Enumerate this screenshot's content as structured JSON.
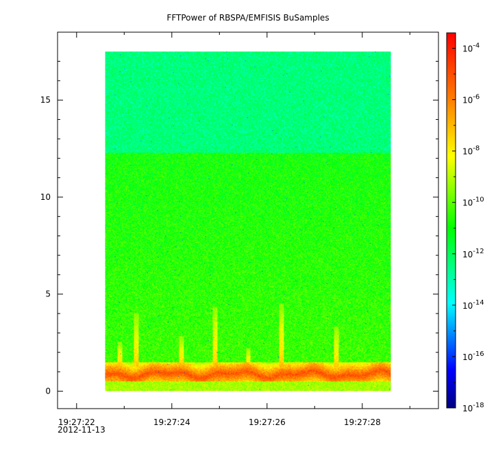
{
  "chart_data": {
    "type": "heatmap",
    "title": "FFTPower of RBSPA/EMFISIS  BuSamples",
    "xlabel": "",
    "ylabel": "",
    "x_ticks": [
      "19:27:22",
      "19:27:24",
      "19:27:26",
      "19:27:28"
    ],
    "x_tick_values": [
      0,
      2,
      4,
      6
    ],
    "x_minor_tick_values": [
      1,
      3,
      5,
      7
    ],
    "x_range": [
      -0.4,
      7.6
    ],
    "x_data_range": [
      0.6,
      6.6
    ],
    "x_subtitle": "2012-11-13",
    "y_ticks": [
      "0",
      "5",
      "10",
      "15"
    ],
    "y_tick_values": [
      0,
      5,
      10,
      15
    ],
    "y_range": [
      -0.9,
      18.5
    ],
    "y_data_range": [
      0,
      17.5
    ],
    "colorbar": {
      "scale": "log",
      "min_exponent": -18,
      "max_exponent": -3.4,
      "tick_exponents": [
        -4,
        -6,
        -8,
        -10,
        -12,
        -14,
        -16,
        -18
      ],
      "tick_labels": [
        "10-4",
        "10-6",
        "10-8",
        "10-10",
        "10-12",
        "10-14",
        "10-16",
        "10-18"
      ],
      "colors": [
        "#00007f",
        "#0000ff",
        "#00ffff",
        "#00ff00",
        "#ffff00",
        "#ff8000",
        "#ff0000"
      ]
    },
    "features": {
      "high_band_start_y": 12.3,
      "high_band_level": -12.4,
      "mid_level": -10.4,
      "low_band_y": [
        0.5,
        1.25
      ],
      "low_band_level": -6.3,
      "bottom_level": -9.2,
      "burst_x": [
        0.9,
        1.25,
        2.2,
        2.9,
        3.6,
        4.3,
        5.45
      ],
      "burst_height": [
        1.3,
        2.8,
        1.6,
        3.1,
        1.0,
        3.3,
        2.1
      ]
    },
    "grid": false,
    "legend": "none"
  }
}
